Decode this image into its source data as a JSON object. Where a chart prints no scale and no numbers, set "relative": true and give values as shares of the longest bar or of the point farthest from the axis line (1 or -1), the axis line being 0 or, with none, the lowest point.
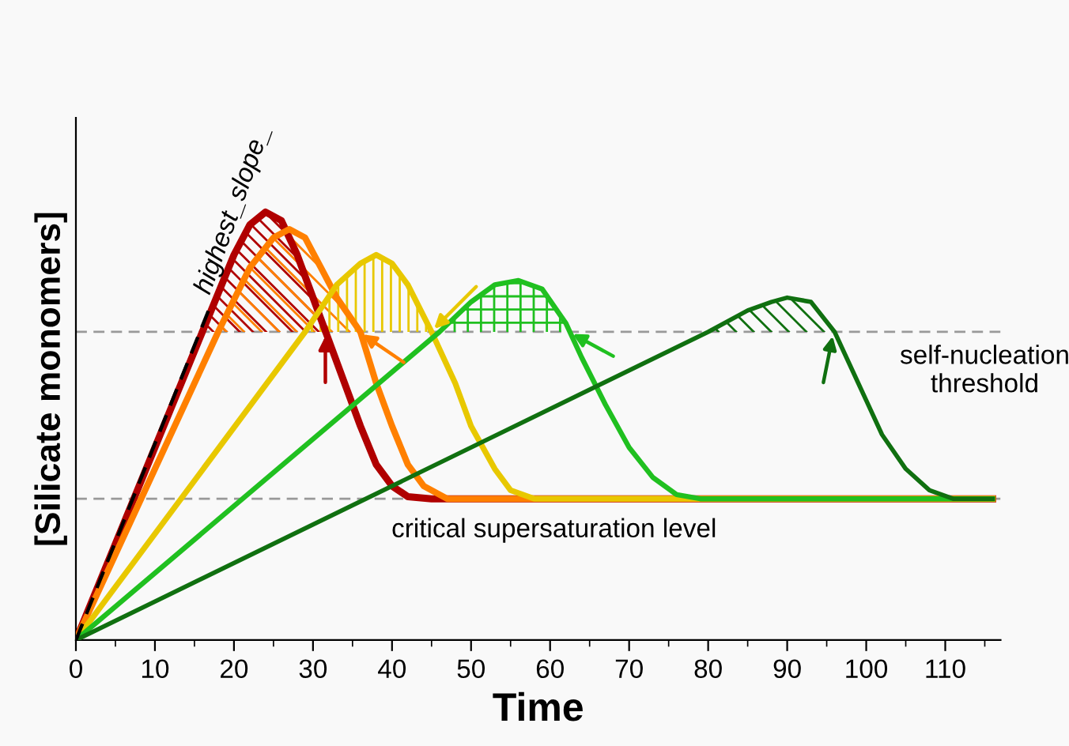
{
  "chart_data": {
    "type": "line",
    "relative": true,
    "xlabel": "Time",
    "ylabel": "[Silicate monomers]",
    "xlim": [
      0,
      117
    ],
    "xticks": [
      0,
      10,
      20,
      30,
      40,
      50,
      60,
      70,
      80,
      90,
      100,
      110
    ],
    "grid": false,
    "legend": false,
    "marker": "none",
    "line_style": "solid",
    "series": [
      {
        "color": "#b00000",
        "x": [
          0,
          16,
          20,
          22,
          24,
          26,
          28,
          30,
          32,
          34,
          36,
          38,
          40,
          42,
          45,
          116
        ],
        "values": [
          0,
          0.72,
          0.9,
          0.97,
          1.0,
          0.98,
          0.9,
          0.8,
          0.7,
          0.6,
          0.5,
          0.41,
          0.36,
          0.335,
          0.33,
          0.33
        ]
      },
      {
        "color": "#ff8000",
        "x": [
          0,
          18,
          22,
          25,
          27,
          29,
          31,
          33,
          36,
          38,
          40,
          42,
          44,
          47,
          116
        ],
        "values": [
          0,
          0.72,
          0.87,
          0.94,
          0.96,
          0.94,
          0.87,
          0.8,
          0.72,
          0.6,
          0.5,
          0.41,
          0.36,
          0.33,
          0.33
        ]
      },
      {
        "color": "#e8c800",
        "x": [
          0,
          29,
          33,
          36,
          38,
          40,
          42,
          45,
          48,
          50,
          53,
          55,
          58,
          116
        ],
        "values": [
          0,
          0.72,
          0.83,
          0.88,
          0.9,
          0.88,
          0.83,
          0.72,
          0.6,
          0.5,
          0.4,
          0.35,
          0.33,
          0.33
        ]
      },
      {
        "color": "#20c020",
        "x": [
          0,
          46,
          50,
          53,
          56,
          59,
          62,
          64,
          67,
          70,
          73,
          76,
          79,
          116
        ],
        "values": [
          0,
          0.72,
          0.79,
          0.83,
          0.84,
          0.82,
          0.74,
          0.66,
          0.55,
          0.45,
          0.38,
          0.34,
          0.33,
          0.33
        ]
      },
      {
        "color": "#107010",
        "x": [
          0,
          80,
          85,
          88,
          90,
          93,
          96,
          99,
          102,
          105,
          108,
          111,
          116
        ],
        "values": [
          0,
          0.72,
          0.77,
          0.79,
          0.8,
          0.79,
          0.72,
          0.6,
          0.48,
          0.4,
          0.35,
          0.33,
          0.33
        ]
      },
      {
        "color": "#000000",
        "line_style": "dashed",
        "x": [
          0,
          17
        ],
        "values": [
          0,
          0.78
        ]
      }
    ],
    "ref_lines": [
      {
        "axis": "y",
        "value": 0.72,
        "label": "self-nucleation\nthreshold",
        "color": "#999999",
        "line_style": "dashed"
      },
      {
        "axis": "y",
        "value": 0.33,
        "label": "critical supersaturation level",
        "color": "#999999",
        "line_style": "dashed"
      }
    ],
    "annotations": [
      {
        "text": "highest_slope_",
        "x": 17,
        "y": 0.78
      }
    ]
  }
}
